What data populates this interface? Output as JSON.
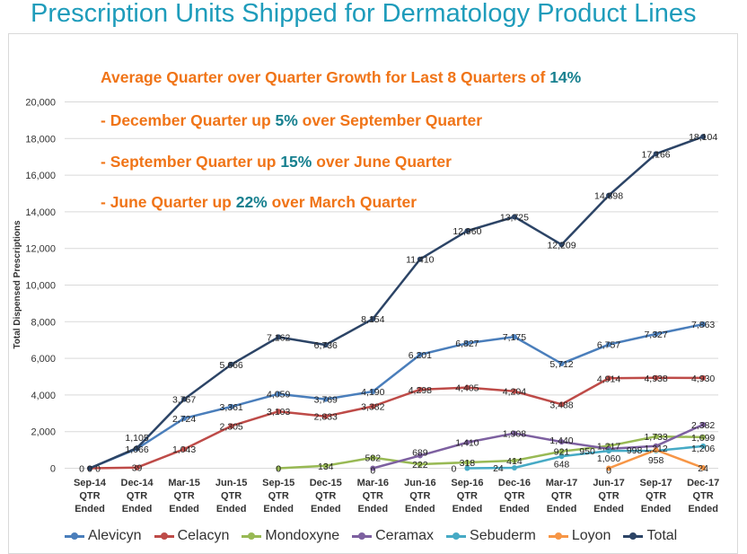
{
  "title": "Prescription Units Shipped for Dermatology Product Lines",
  "annotations": [
    {
      "pre": "Average Quarter over Quarter Growth for Last 8 Quarters of ",
      "value": "14%",
      "post": ""
    },
    {
      "pre": "-  December Quarter up ",
      "value": "5%",
      "post": " over September Quarter"
    },
    {
      "pre": "-  September Quarter up ",
      "value": "15%",
      "post": " over June Quarter"
    },
    {
      "pre": "-  June Quarter up ",
      "value": "22%",
      "post": " over March Quarter"
    }
  ],
  "chart_data": {
    "type": "line",
    "ylabel": "Total Dispensed Prescriptions",
    "xlabel": "",
    "ylim": [
      0,
      20000
    ],
    "yticks": [
      "0",
      "2,000",
      "4,000",
      "6,000",
      "8,000",
      "10,000",
      "12,000",
      "14,000",
      "16,000",
      "18,000",
      "20,000"
    ],
    "grid": true,
    "legend": "bottom",
    "categories": [
      "Sep-14",
      "Dec-14",
      "Mar-15",
      "Jun-15",
      "Sep-15",
      "Dec-15",
      "Mar-16",
      "Jun-16",
      "Sep-16",
      "Dec-16",
      "Mar-17",
      "Jun-17",
      "Sep-17",
      "Dec-17"
    ],
    "category_suffix": [
      "QTR",
      "Ended"
    ],
    "series": [
      {
        "name": "Alevicyn",
        "color": "#4a7ebb",
        "values": [
          0,
          1066,
          2724,
          3361,
          4059,
          3769,
          4190,
          6201,
          6827,
          7175,
          5712,
          6757,
          7327,
          7863
        ]
      },
      {
        "name": "Celacyn",
        "color": "#be4b48",
        "values": [
          0,
          39,
          1043,
          2305,
          3103,
          2833,
          3382,
          4298,
          4405,
          4204,
          3488,
          4914,
          4938,
          4930
        ]
      },
      {
        "name": "Mondoxyne",
        "color": "#98b954",
        "values": [
          null,
          null,
          null,
          null,
          0,
          134,
          582,
          222,
          318,
          414,
          921,
          1217,
          1733,
          1699
        ]
      },
      {
        "name": "Ceramax",
        "color": "#7d60a0",
        "values": [
          null,
          null,
          null,
          null,
          null,
          null,
          0,
          689,
          1410,
          1908,
          1440,
          1060,
          1212,
          2382
        ]
      },
      {
        "name": "Sebuderm",
        "color": "#46aac5",
        "values": [
          null,
          null,
          null,
          null,
          null,
          null,
          null,
          null,
          0,
          24,
          648,
          950,
          958,
          1206
        ]
      },
      {
        "name": "Loyon",
        "color": "#f79646",
        "values": [
          null,
          null,
          null,
          null,
          null,
          null,
          null,
          null,
          null,
          null,
          null,
          0,
          998,
          24
        ]
      },
      {
        "name": "Total",
        "color": "#2c4466",
        "values": [
          0,
          1105,
          3767,
          5666,
          7162,
          6736,
          8154,
          11410,
          12960,
          13725,
          12209,
          14898,
          17166,
          18104
        ]
      }
    ]
  }
}
